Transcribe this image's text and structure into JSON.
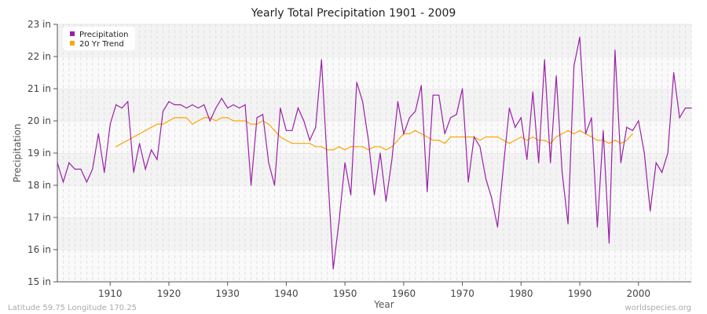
{
  "chart_data": {
    "type": "line",
    "title": "Yearly Total Precipitation 1901 - 2009",
    "xlabel": "Year",
    "ylabel": "Precipitation",
    "xlim": [
      1901,
      2009
    ],
    "ylim": [
      15,
      23
    ],
    "y_ticks": [
      "15 in",
      "16 in",
      "17 in",
      "18 in",
      "19 in",
      "20 in",
      "21 in",
      "22 in",
      "23 in"
    ],
    "x_ticks": [
      "1910",
      "1920",
      "1930",
      "1940",
      "1950",
      "1960",
      "1970",
      "1980",
      "1990",
      "2000"
    ],
    "grid": true,
    "legend_position": "top-left",
    "series": [
      {
        "name": "Precipitation",
        "color": "#9b1fa8",
        "x_start": 1901,
        "values": [
          18.7,
          18.1,
          18.7,
          18.5,
          18.5,
          18.1,
          18.5,
          19.6,
          18.4,
          19.9,
          20.5,
          20.4,
          20.6,
          18.4,
          19.3,
          18.5,
          19.1,
          18.8,
          20.3,
          20.6,
          20.5,
          20.5,
          20.4,
          20.5,
          20.4,
          20.5,
          20.0,
          20.4,
          20.7,
          20.4,
          20.5,
          20.4,
          20.5,
          18.0,
          20.1,
          20.2,
          18.7,
          18.0,
          20.4,
          19.7,
          19.7,
          20.4,
          20.0,
          19.4,
          19.8,
          21.9,
          18.6,
          15.4,
          16.9,
          18.7,
          17.7,
          21.2,
          20.6,
          19.4,
          17.7,
          19.0,
          17.5,
          18.8,
          20.6,
          19.6,
          20.1,
          20.3,
          21.1,
          17.8,
          20.8,
          20.8,
          19.6,
          20.1,
          20.2,
          21.0,
          18.1,
          19.5,
          19.2,
          18.2,
          17.6,
          16.7,
          18.6,
          20.4,
          19.8,
          20.1,
          18.8,
          20.9,
          18.7,
          21.9,
          18.7,
          21.4,
          18.4,
          16.8,
          21.7,
          22.6,
          19.6,
          20.1,
          16.7,
          19.7,
          16.2,
          22.2,
          18.7,
          19.8,
          19.7,
          20.0,
          19.0,
          17.2,
          18.7,
          18.4,
          19.0,
          21.5,
          20.1,
          20.4,
          20.4
        ]
      },
      {
        "name": "20 Yr Trend",
        "color": "#ffa500",
        "x_start": 1911,
        "values": [
          19.2,
          19.3,
          19.4,
          19.5,
          19.6,
          19.7,
          19.8,
          19.9,
          19.9,
          20.0,
          20.1,
          20.1,
          20.1,
          19.9,
          20.0,
          20.1,
          20.1,
          20.0,
          20.1,
          20.1,
          20.0,
          20.0,
          20.0,
          19.9,
          19.9,
          20.0,
          19.9,
          19.7,
          19.5,
          19.4,
          19.3,
          19.3,
          19.3,
          19.3,
          19.2,
          19.2,
          19.1,
          19.1,
          19.2,
          19.1,
          19.2,
          19.2,
          19.2,
          19.1,
          19.2,
          19.2,
          19.1,
          19.2,
          19.4,
          19.6,
          19.6,
          19.7,
          19.6,
          19.5,
          19.4,
          19.4,
          19.3,
          19.5,
          19.5,
          19.5,
          19.5,
          19.5,
          19.4,
          19.5,
          19.5,
          19.5,
          19.4,
          19.3,
          19.4,
          19.5,
          19.4,
          19.5,
          19.4,
          19.4,
          19.3,
          19.5,
          19.6,
          19.7,
          19.6,
          19.7,
          19.6,
          19.5,
          19.4,
          19.4,
          19.3,
          19.4,
          19.3,
          19.4,
          19.6
        ]
      }
    ]
  },
  "footer": {
    "location": "Latitude 59.75 Longitude 170.25",
    "source": "worldspecies.org"
  }
}
